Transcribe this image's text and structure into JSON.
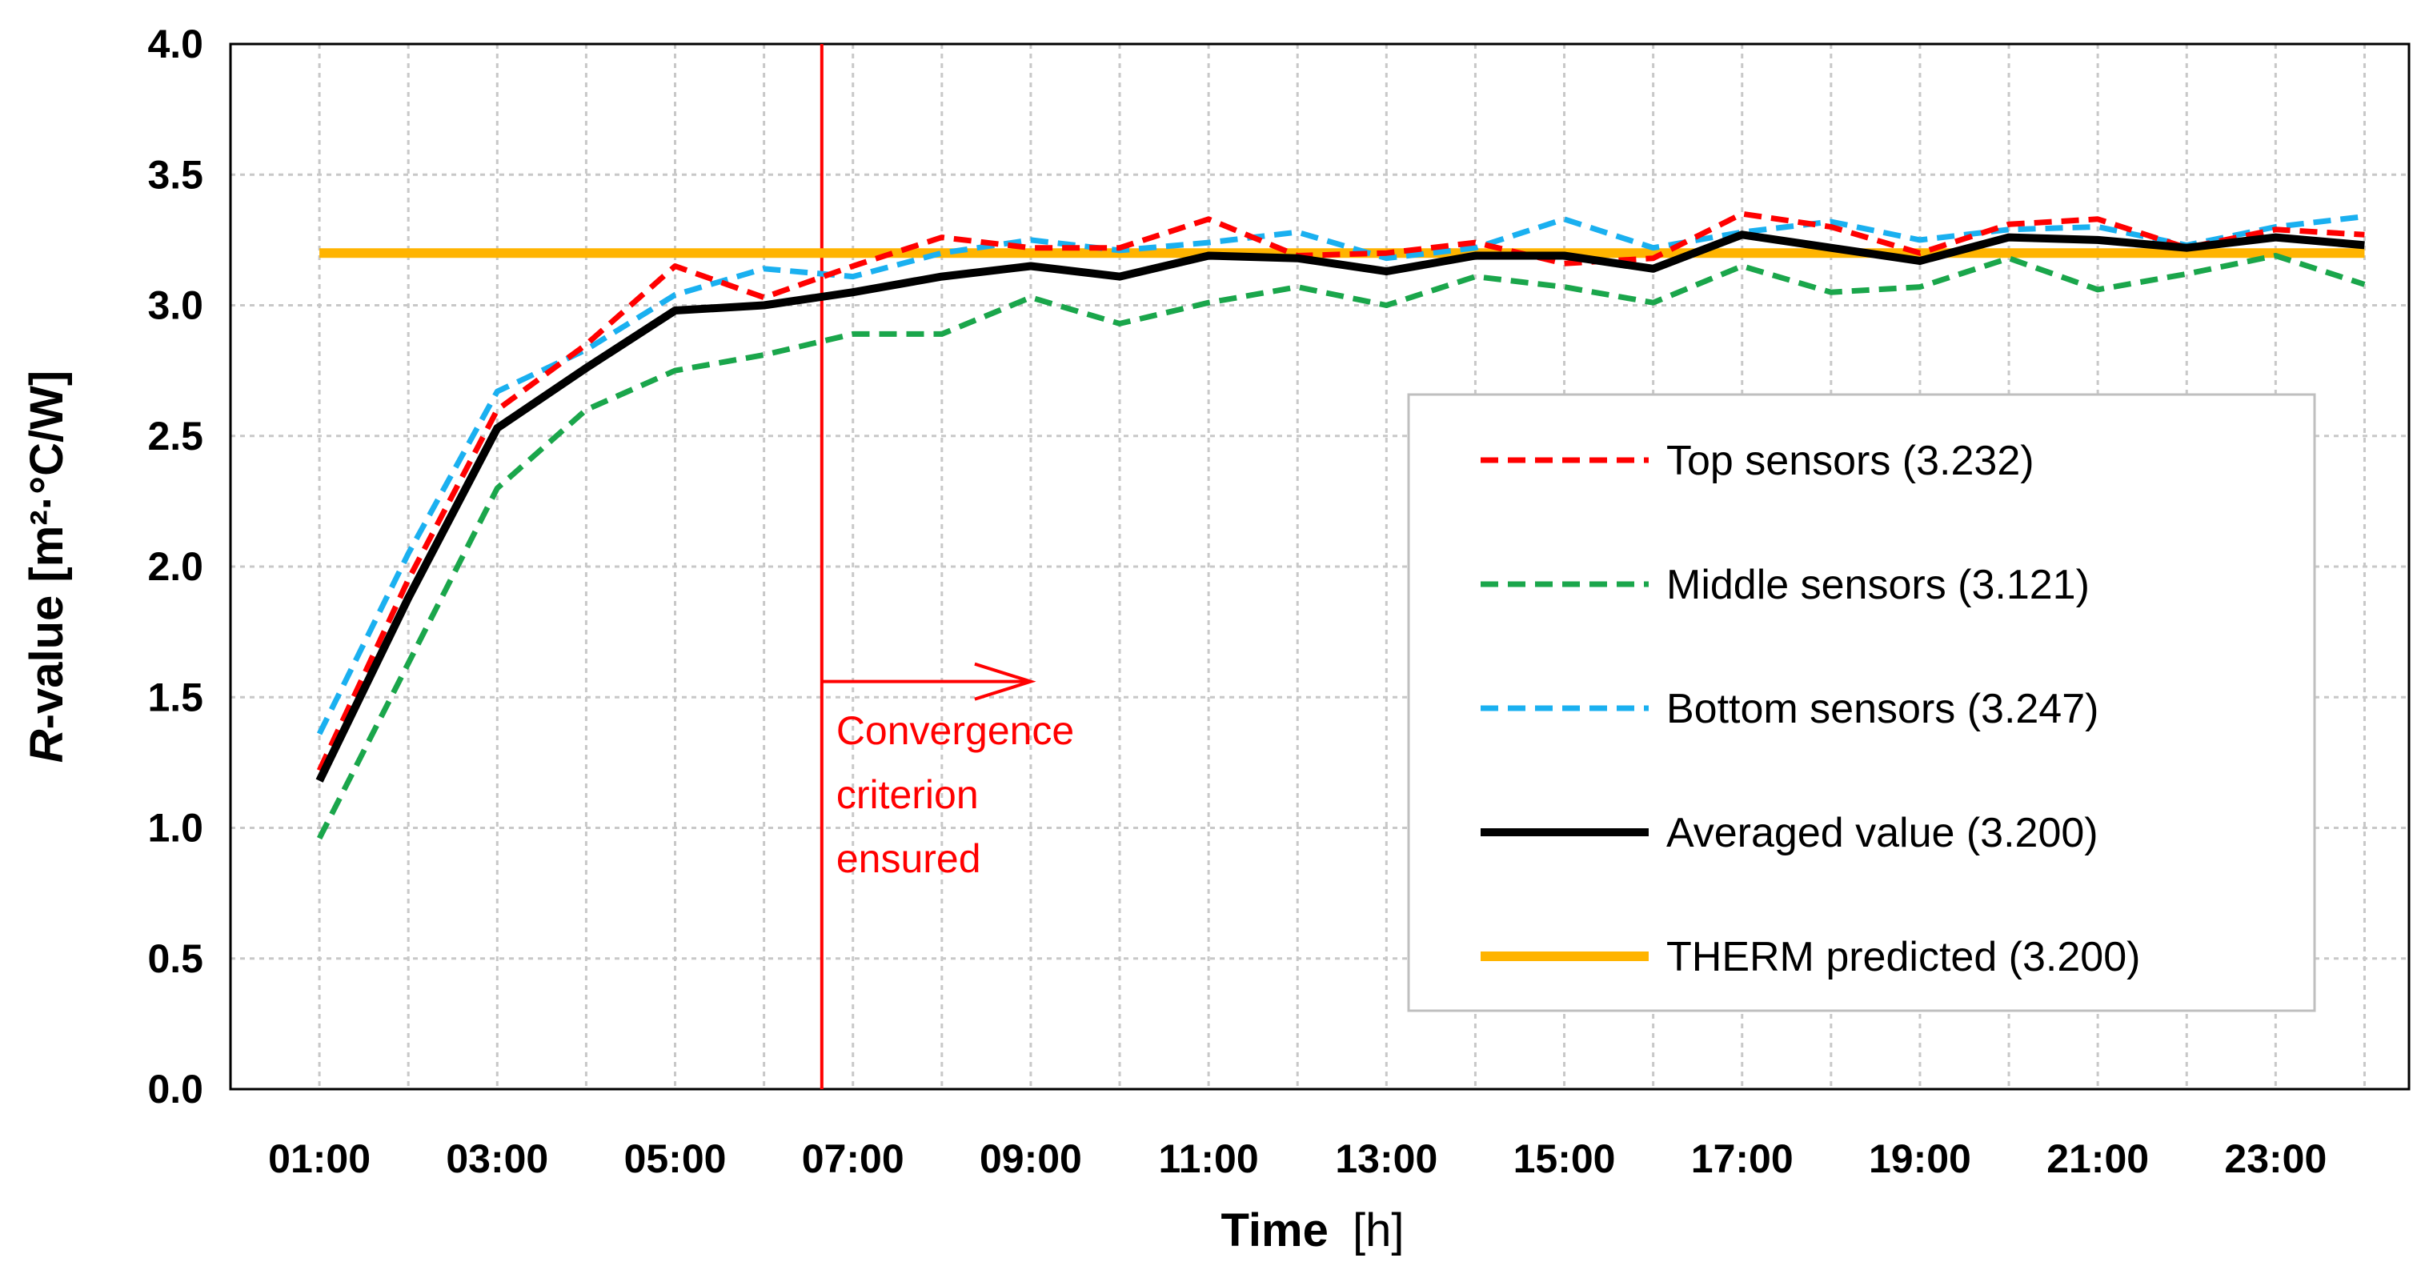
{
  "chart_data": {
    "type": "line",
    "xlabel": {
      "bold": "Time",
      "normal": "[h]"
    },
    "ylabel": {
      "italic": "R",
      "rest": "-value [m²·°C/W]"
    },
    "ylim": [
      0,
      4
    ],
    "yticks": [
      "0.0",
      "0.5",
      "1.0",
      "1.5",
      "2.0",
      "2.5",
      "3.0",
      "3.5",
      "4.0"
    ],
    "xlim": [
      1,
      24
    ],
    "xtick_labels": [
      "01:00",
      "03:00",
      "05:00",
      "07:00",
      "09:00",
      "11:00",
      "13:00",
      "15:00",
      "17:00",
      "19:00",
      "21:00",
      "23:00"
    ],
    "grid": true,
    "x": [
      1,
      2,
      3,
      4,
      5,
      6,
      7,
      8,
      9,
      10,
      11,
      12,
      13,
      14,
      15,
      16,
      17,
      18,
      19,
      20,
      21,
      22,
      23,
      24
    ],
    "series": [
      {
        "key": "top",
        "name": "Top sensors (3.232)",
        "color": "#ff0000",
        "style": "dashed",
        "values": [
          1.22,
          1.95,
          2.6,
          2.85,
          3.15,
          3.03,
          3.15,
          3.26,
          3.22,
          3.22,
          3.33,
          3.19,
          3.2,
          3.24,
          3.16,
          3.18,
          3.35,
          3.3,
          3.2,
          3.31,
          3.33,
          3.22,
          3.29,
          3.27
        ]
      },
      {
        "key": "middle",
        "name": "Middle sensors (3.121)",
        "color": "#1aa64b",
        "style": "dashed",
        "values": [
          0.96,
          1.63,
          2.3,
          2.6,
          2.75,
          2.81,
          2.89,
          2.89,
          3.03,
          2.93,
          3.01,
          3.07,
          3.0,
          3.11,
          3.07,
          3.01,
          3.15,
          3.05,
          3.07,
          3.18,
          3.06,
          3.12,
          3.19,
          3.08
        ]
      },
      {
        "key": "bottom",
        "name": "Bottom sensors (3.247)",
        "color": "#1ab0f0",
        "style": "dashed",
        "values": [
          1.36,
          2.05,
          2.67,
          2.83,
          3.04,
          3.14,
          3.11,
          3.2,
          3.25,
          3.21,
          3.24,
          3.28,
          3.18,
          3.22,
          3.33,
          3.22,
          3.28,
          3.32,
          3.25,
          3.29,
          3.3,
          3.23,
          3.3,
          3.34
        ]
      },
      {
        "key": "avg",
        "name": "Averaged value (3.200)",
        "color": "#000000",
        "style": "solid",
        "values": [
          1.18,
          1.88,
          2.53,
          2.76,
          2.98,
          3.0,
          3.05,
          3.11,
          3.15,
          3.11,
          3.19,
          3.18,
          3.13,
          3.19,
          3.19,
          3.14,
          3.27,
          3.22,
          3.17,
          3.26,
          3.25,
          3.22,
          3.26,
          3.23
        ]
      },
      {
        "key": "therm",
        "name": "THERM predicted (3.200)",
        "color": "#ffb400",
        "style": "solid",
        "values": [
          3.2,
          3.2,
          3.2,
          3.2,
          3.2,
          3.2,
          3.2,
          3.2,
          3.2,
          3.2,
          3.2,
          3.2,
          3.2,
          3.2,
          3.2,
          3.2,
          3.2,
          3.2,
          3.2,
          3.2,
          3.2,
          3.2,
          3.2,
          3.2
        ]
      }
    ],
    "convergence": {
      "x": 6.65,
      "arrow_to_x": 9.0,
      "arrow_y": 1.56,
      "color": "#ff0000",
      "label_lines": [
        "Convergence",
        "criterion",
        "ensured"
      ]
    },
    "legend_position": "right"
  }
}
